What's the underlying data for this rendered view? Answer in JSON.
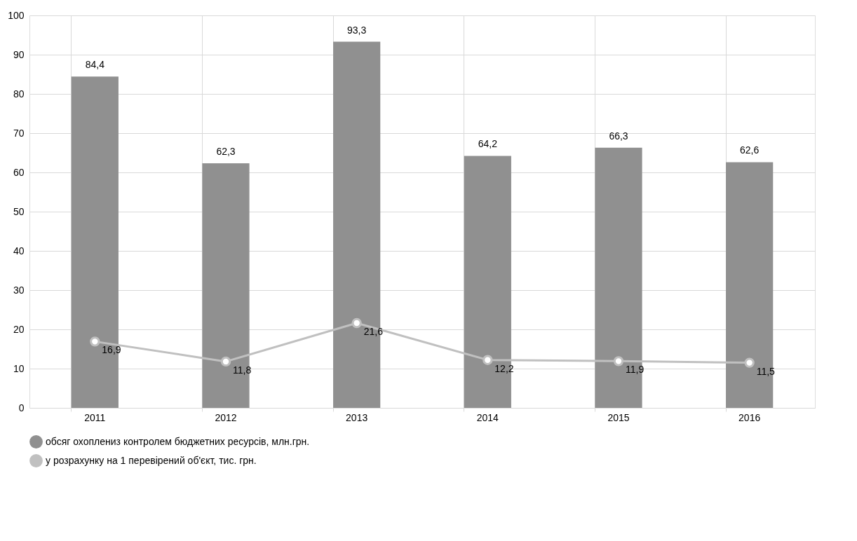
{
  "chart_data": {
    "type": "bar",
    "categories": [
      "2011",
      "2012",
      "2013",
      "2014",
      "2015",
      "2016"
    ],
    "series": [
      {
        "name": "обсяг охоплениз контролем бюджетних ресурсів, млн.грн.",
        "color": "#909090",
        "values": [
          84.4,
          62.3,
          93.3,
          64.2,
          66.3,
          62.6
        ],
        "value_labels": [
          "84,4",
          "62,3",
          "93,3",
          "64,2",
          "66,3",
          "62,6"
        ]
      },
      {
        "name": "у розрахунку на 1 перевірений об'єкт, тис. грн.",
        "type": "line",
        "color": "#c0c0c0",
        "marker": "circle",
        "values": [
          16.9,
          11.8,
          21.6,
          12.2,
          11.9,
          11.5
        ],
        "value_labels": [
          "16,9",
          "11,8",
          "21,6",
          "12,2",
          "11,9",
          "11,5"
        ]
      }
    ],
    "ylim": [
      0,
      100
    ],
    "yticks": [
      0,
      10,
      20,
      30,
      40,
      50,
      60,
      70,
      80,
      90,
      100
    ],
    "grid": true,
    "legend": "bottom"
  }
}
